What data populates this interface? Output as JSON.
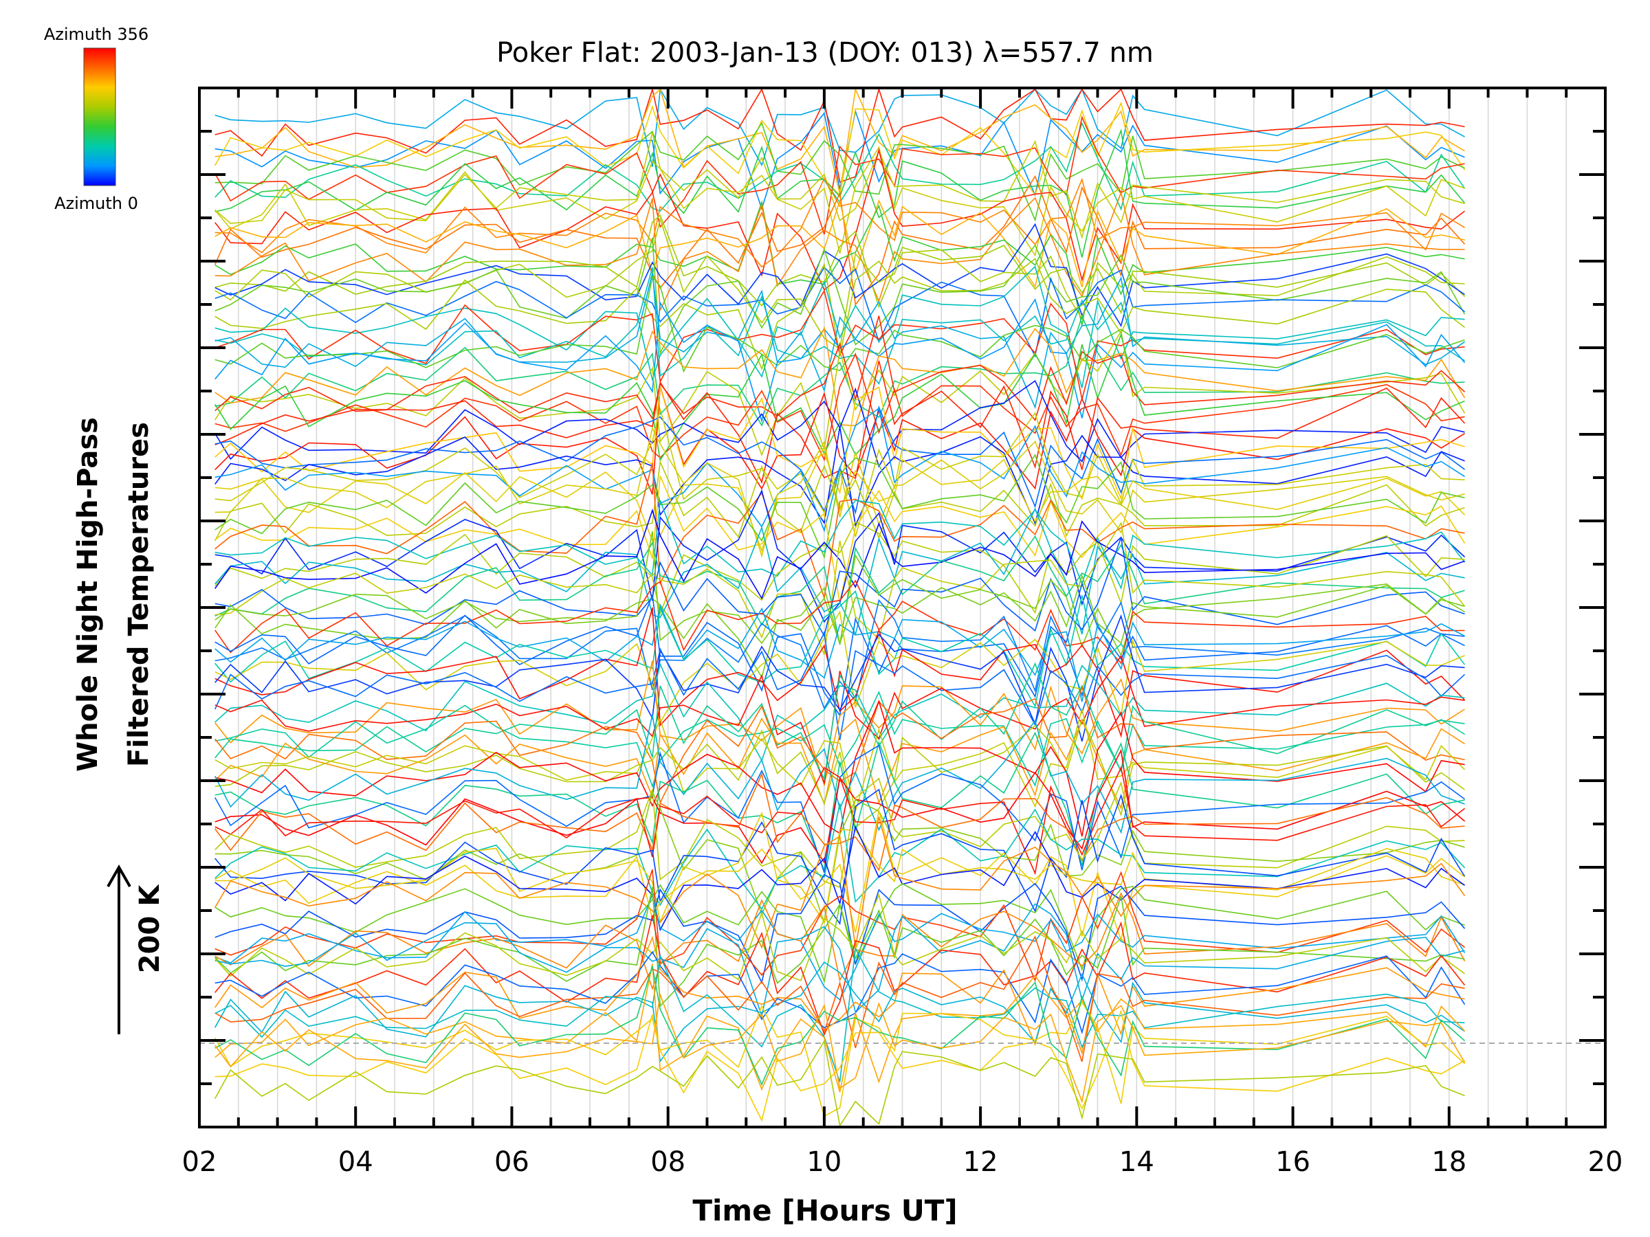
{
  "chart_data": {
    "type": "line",
    "title": "Poker Flat: 2003-Jan-13 (DOY: 013) λ=557.7 nm",
    "xlabel": "Time [Hours UT]",
    "ylabel_lines": [
      "Whole Night High-Pass",
      "Filtered Temperatures"
    ],
    "scale_indicator": "200 K",
    "xlim": [
      2,
      20
    ],
    "x_ticks": [
      "02",
      "04",
      "06",
      "08",
      "10",
      "12",
      "14",
      "16",
      "18",
      "20"
    ],
    "colorbar": {
      "top_label": "Azimuth 356",
      "bottom_label": "Azimuth 0",
      "colormap": "rainbow",
      "colors": [
        "#0000ff",
        "#0099ff",
        "#00ccaa",
        "#33cc33",
        "#aacc00",
        "#ffcc00",
        "#ff6600",
        "#ff0000"
      ]
    },
    "grid": "vertical",
    "series_count": 112,
    "sample_times": [
      2.2,
      2.4,
      2.8,
      3.1,
      3.4,
      4.0,
      4.4,
      4.9,
      5.4,
      5.8,
      6.1,
      6.7,
      7.2,
      7.6,
      7.8,
      7.9,
      8.2,
      8.5,
      8.9,
      9.2,
      9.4,
      9.7,
      10.0,
      10.2,
      10.4,
      10.7,
      10.9,
      11.0,
      11.5,
      12.0,
      12.3,
      12.7,
      12.9,
      13.1,
      13.3,
      13.5,
      13.8,
      13.95,
      14.1,
      15.8,
      17.2,
      17.7,
      17.9,
      18.2
    ],
    "reference_line_label": "",
    "reference_line_style": "dashed gray"
  }
}
